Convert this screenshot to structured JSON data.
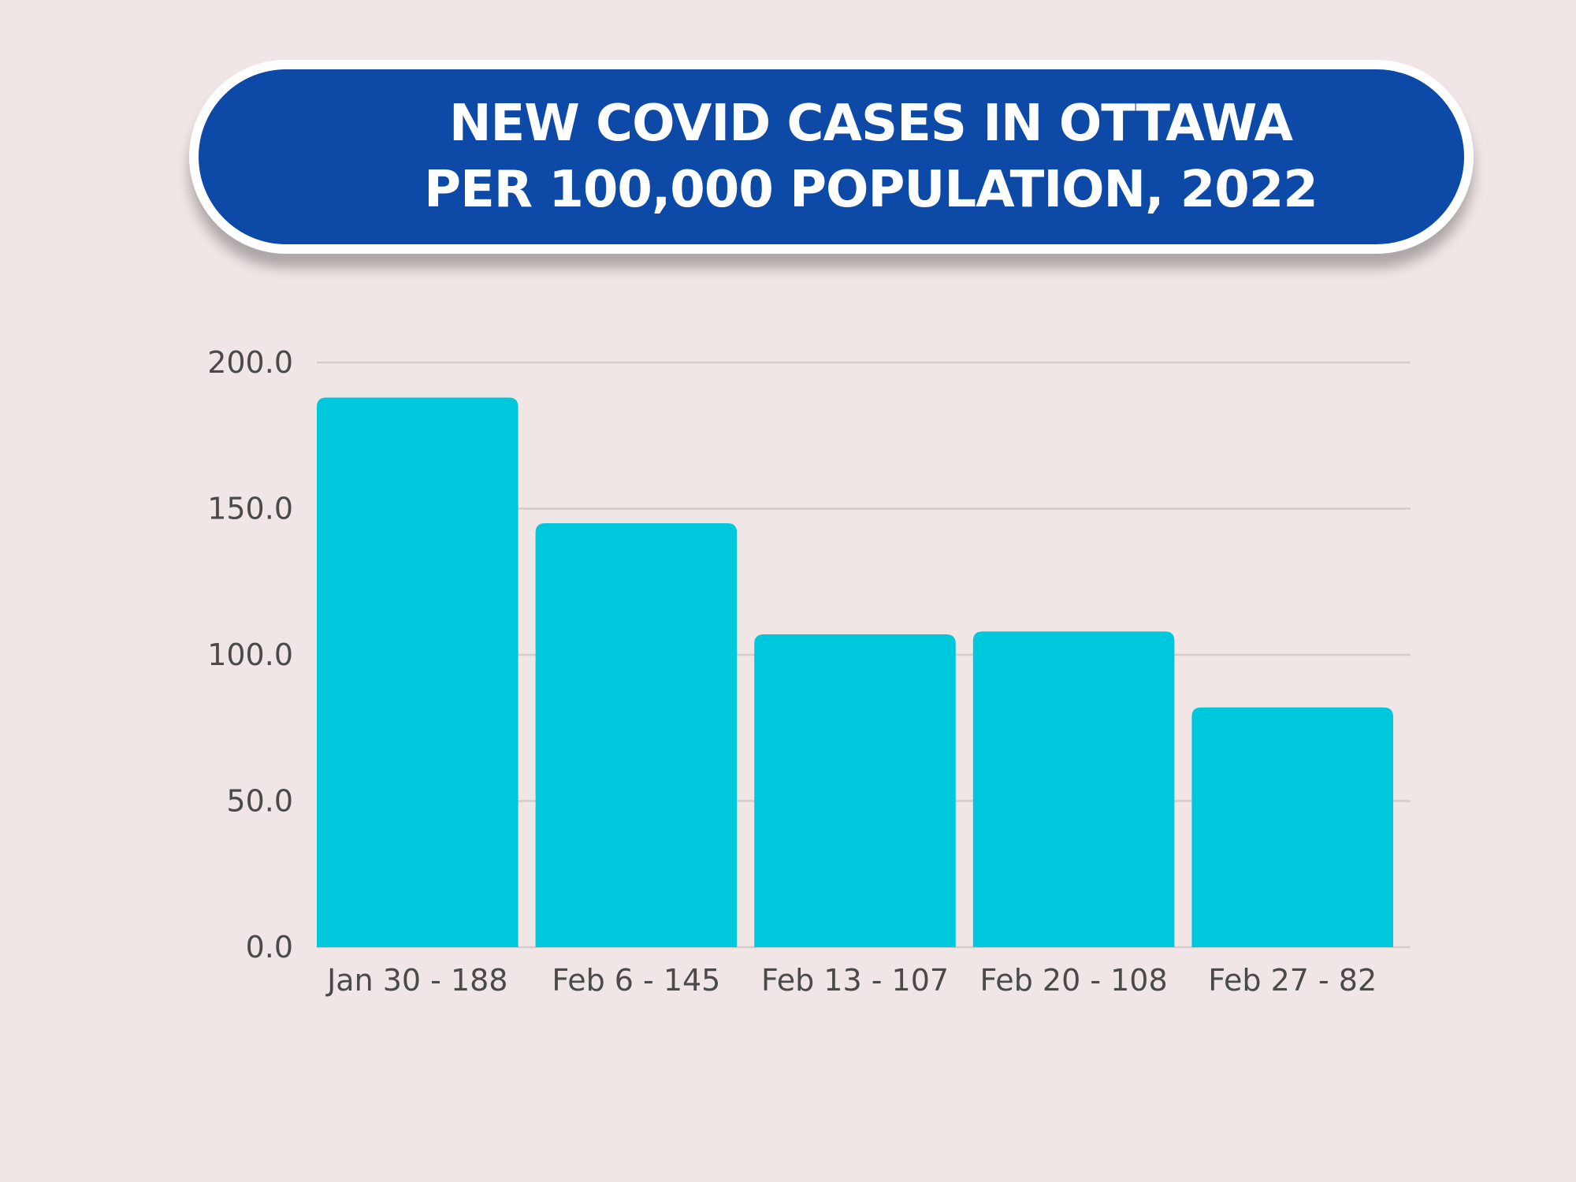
{
  "chart_data": {
    "type": "bar",
    "title_lines": [
      "NEW COVID CASES IN OTTAWA",
      "PER 100,000 POPULATION, 2022"
    ],
    "categories": [
      "Jan 30 - 188",
      "Feb 6 - 145",
      "Feb 13 - 107",
      "Feb 20 - 108",
      "Feb 27 - 82"
    ],
    "values": [
      188,
      145,
      107,
      108,
      82
    ],
    "xlabel": "",
    "ylabel": "",
    "ylim": [
      0,
      200
    ],
    "yticks": [
      0,
      50,
      100,
      150,
      200
    ],
    "ytick_labels": [
      "0.0",
      "50.0",
      "100.0",
      "150.0",
      "200.0"
    ],
    "grid": true,
    "colors": {
      "bar": "#00c8dc",
      "banner": "#0d4aa8",
      "background": "#f1e6e6",
      "gridline": "#d5cbcb"
    }
  }
}
